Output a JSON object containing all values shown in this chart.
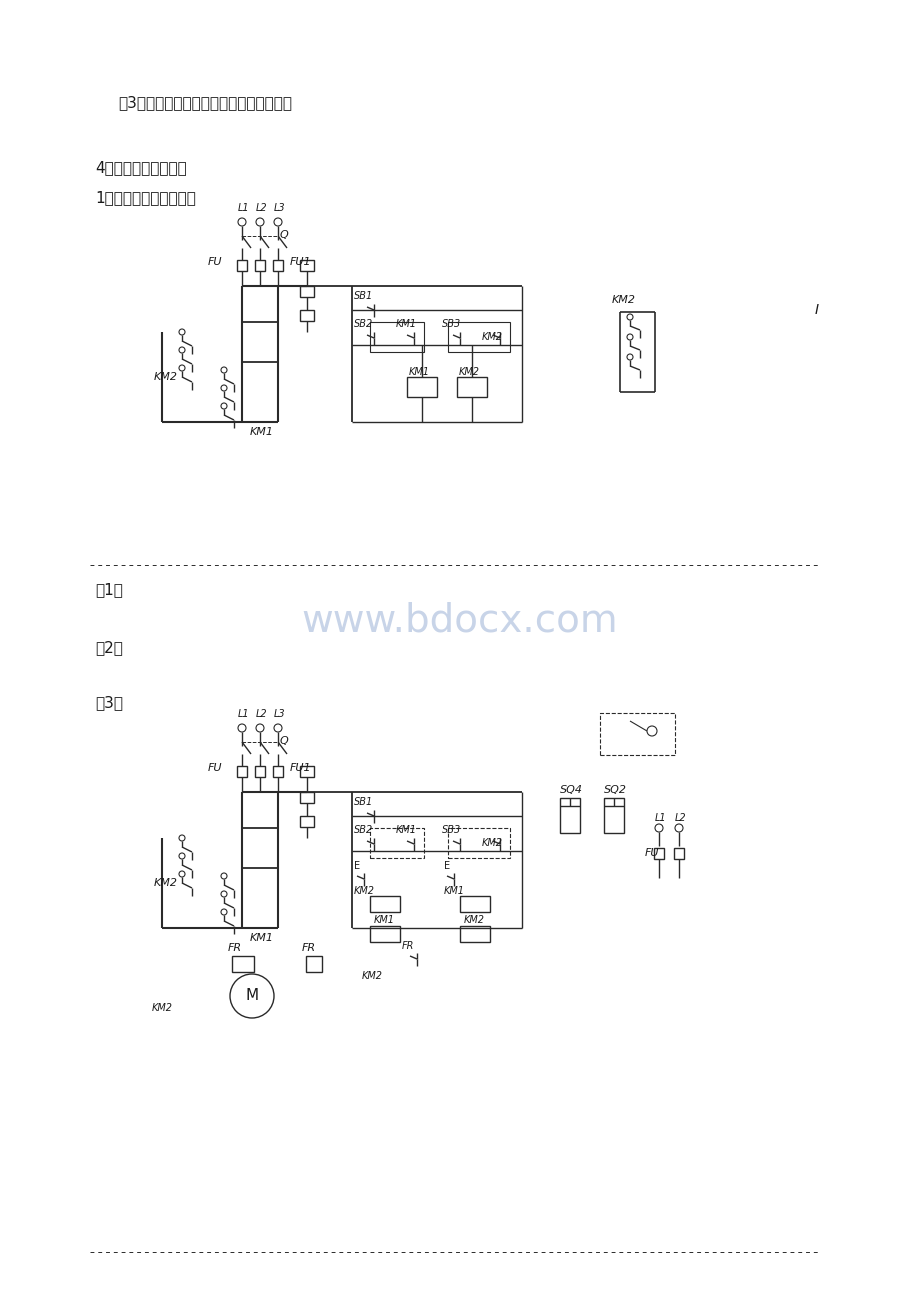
{
  "bg_color": "#ffffff",
  "text_color": "#1a1a1a",
  "line_color": "#2a2a2a",
  "watermark_color": "#c8d4e8",
  "title3": "（3）采用时间继电器延时的顺序起停控制",
  "title4": "4、可逆旋转控制电路",
  "subtitle1": "1）手动按钮控制电路：",
  "label1": "（1）",
  "label2": "（2）",
  "label3": "（3）",
  "watermark": "www.bdocx.com",
  "page_width": 9.2,
  "page_height": 13.02
}
